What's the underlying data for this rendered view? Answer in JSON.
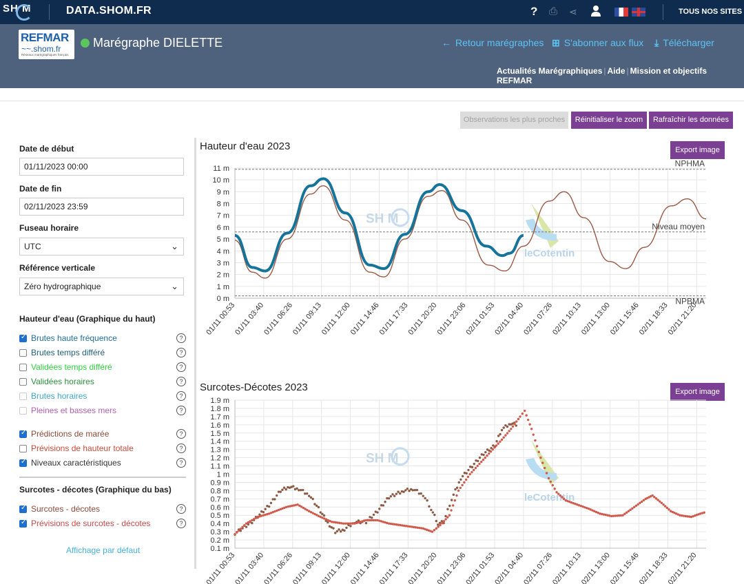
{
  "topbar": {
    "logo_text": "SH  M",
    "site_title": "DATA.SHOM.FR",
    "help_icon": "question-icon",
    "print_icon": "print-icon",
    "share_icon": "share-icon",
    "user_icon": "user-icon",
    "all_sites": "TOUS NOS SITES"
  },
  "header": {
    "logo_line1": "REFMAR",
    "logo_line2": "~~.shom.fr",
    "logo_line3": "Réseaux marégraphiques français",
    "station_title": "Marégraphe DIELETTE",
    "back_link": "Retour marégraphes",
    "subscribe_link": "S'abonner aux flux",
    "download_link": "Télécharger",
    "nav": [
      "Actualités Marégraphiques",
      "Aide",
      "Mission et objectifs REFMAR"
    ]
  },
  "toolbar": {
    "nearest": "Observations les plus proches",
    "reset_zoom": "Réinitialiser le zoom",
    "refresh": "Rafraîchir les données"
  },
  "sidebar": {
    "start_label": "Date de début",
    "start_value": "01/11/2023 00:00",
    "end_label": "Date de fin",
    "end_value": "02/11/2023 23:59",
    "tz_label": "Fuseau horaire",
    "tz_value": "UTC",
    "ref_label": "Référence verticale",
    "ref_value": "Zéro hydrographique",
    "top_section": "Hauteur d'eau (Graphique du haut)",
    "top_options": [
      {
        "label": "Brutes haute fréquence",
        "checked": true,
        "color": "#1f6f9a"
      },
      {
        "label": "Brutes temps différé",
        "checked": false,
        "color": "#1f5f7a"
      },
      {
        "label": "Validées temps différé",
        "checked": false,
        "color": "#2fcf3f"
      },
      {
        "label": "Validées horaires",
        "checked": false,
        "color": "#2f8f3f"
      },
      {
        "label": "Brutes horaires",
        "checked": false,
        "color": "#3fa8c8"
      },
      {
        "label": "Pleines et basses mers",
        "checked": false,
        "color": "#b060b0"
      },
      {
        "label": "Prédictions de marée",
        "checked": true,
        "color": "#8b4a3a"
      },
      {
        "label": "Prévisions de hauteur totale",
        "checked": false,
        "color": "#c84a3a"
      },
      {
        "label": "Niveaux caractéristiques",
        "checked": true,
        "color": "#333333"
      }
    ],
    "bottom_section": "Surcotes - décotes (Graphique du bas)",
    "bottom_options": [
      {
        "label": "Surcotes - décotes",
        "checked": true,
        "color": "#8b4a3a"
      },
      {
        "label": "Prévisions de surcotes - décotes",
        "checked": true,
        "color": "#c84a4a"
      }
    ],
    "default_link": "Affichage par défaut"
  },
  "chart_data": [
    {
      "type": "line",
      "title": "Hauteur d'eau 2023",
      "export_label": "Export image",
      "watermark_left": "SH  M",
      "watermark_right": "leCotentin",
      "y_ticks": [
        "0 m",
        "1 m",
        "2 m",
        "3 m",
        "4 m",
        "5 m",
        "6 m",
        "7 m",
        "8 m",
        "9 m",
        "10 m",
        "11 m"
      ],
      "ylim": [
        0,
        11
      ],
      "x_ticks": [
        "01/11 00:53",
        "01/11 03:40",
        "01/11 06:26",
        "01/11 09:13",
        "01/11 12:00",
        "01/11 14:46",
        "01/11 17:33",
        "01/11 20:20",
        "01/11 23:06",
        "02/11 01:53",
        "02/11 04:40",
        "02/11 07:26",
        "02/11 10:13",
        "02/11 13:00",
        "02/11 15:46",
        "02/11 18:33",
        "02/11 21:20"
      ],
      "levels": [
        {
          "name": "NPHMA",
          "value": 10.9
        },
        {
          "name": "Niveau moyen",
          "value": 5.6
        },
        {
          "name": "NPBMA",
          "value": 0.2
        }
      ],
      "series": [
        {
          "name": "Prédictions de marée",
          "color": "#9a5a46",
          "points": [
            [
              0,
              4.9
            ],
            [
              1.5,
              2.2
            ],
            [
              2.6,
              1.7
            ],
            [
              4.5,
              5.0
            ],
            [
              6.5,
              8.8
            ],
            [
              7.6,
              9.5
            ],
            [
              9.5,
              6.6
            ],
            [
              11.6,
              2.2
            ],
            [
              12.8,
              1.8
            ],
            [
              14.6,
              5.0
            ],
            [
              16.6,
              8.6
            ],
            [
              17.8,
              9.1
            ],
            [
              19.5,
              6.6
            ],
            [
              21.8,
              2.8
            ],
            [
              23.2,
              2.3
            ],
            [
              24.8,
              4.4
            ],
            [
              27.0,
              8.2
            ],
            [
              28.3,
              9.0
            ],
            [
              30.0,
              6.8
            ],
            [
              32.2,
              3.1
            ],
            [
              33.6,
              2.5
            ],
            [
              35.2,
              4.3
            ],
            [
              37.5,
              7.8
            ],
            [
              38.9,
              8.4
            ],
            [
              40.5,
              6.7
            ]
          ]
        },
        {
          "name": "Brutes haute fréquence",
          "color": "#16739a",
          "points": [
            [
              0,
              5.3
            ],
            [
              1.5,
              2.6
            ],
            [
              2.6,
              2.3
            ],
            [
              4.5,
              5.5
            ],
            [
              6.5,
              9.5
            ],
            [
              7.6,
              10.1
            ],
            [
              9.5,
              7.2
            ],
            [
              11.6,
              2.8
            ],
            [
              12.8,
              2.5
            ],
            [
              14.6,
              5.4
            ],
            [
              16.6,
              9.0
            ],
            [
              17.6,
              9.6
            ],
            [
              19.5,
              7.4
            ],
            [
              21.6,
              4.4
            ],
            [
              23.0,
              3.6
            ],
            [
              23.6,
              3.8
            ],
            [
              24.8,
              5.3
            ]
          ]
        }
      ]
    },
    {
      "type": "scatter",
      "title": "Surcotes-Décotes 2023",
      "export_label": "Export image",
      "watermark_left": "SH  M",
      "watermark_right": "leCotentin",
      "y_ticks": [
        "0.1 m",
        "0.2 m",
        "0.3 m",
        "0.4 m",
        "0.5 m",
        "0.6 m",
        "0.7 m",
        "0.8 m",
        "0.9 m",
        "1 m",
        "1.1 m",
        "1.2 m",
        "1.3 m",
        "1.4 m",
        "1.5 m",
        "1.6 m",
        "1.7 m",
        "1.8 m",
        "1.9 m"
      ],
      "ylim": [
        0.1,
        1.9
      ],
      "x_ticks": [
        "01/11 00:53",
        "01/11 03:40",
        "01/11 06:26",
        "01/11 09:13",
        "01/11 12:00",
        "01/11 14:46",
        "01/11 17:33",
        "01/11 20:20",
        "01/11 23:06",
        "02/11 01:53",
        "02/11 04:40",
        "02/11 07:26",
        "02/11 10:13",
        "02/11 13:00",
        "02/11 15:46",
        "02/11 18:33",
        "02/11 21:20"
      ],
      "series": [
        {
          "name": "Surcotes - décotes",
          "color": "#8b5a44",
          "points": [
            [
              0,
              0.28
            ],
            [
              1.5,
              0.42
            ],
            [
              3.0,
              0.62
            ],
            [
              4.0,
              0.8
            ],
            [
              4.8,
              0.85
            ],
            [
              5.6,
              0.82
            ],
            [
              6.5,
              0.75
            ],
            [
              7.5,
              0.55
            ],
            [
              8.3,
              0.38
            ],
            [
              8.8,
              0.3
            ],
            [
              9.6,
              0.33
            ],
            [
              10.5,
              0.42
            ],
            [
              11.5,
              0.42
            ],
            [
              12.5,
              0.55
            ],
            [
              13.5,
              0.72
            ],
            [
              14.8,
              0.8
            ],
            [
              15.6,
              0.82
            ],
            [
              16.5,
              0.75
            ],
            [
              17.2,
              0.58
            ],
            [
              17.8,
              0.4
            ],
            [
              18.3,
              0.42
            ],
            [
              19.0,
              0.7
            ],
            [
              19.8,
              0.95
            ],
            [
              20.8,
              1.1
            ],
            [
              21.8,
              1.25
            ],
            [
              22.8,
              1.35
            ],
            [
              23.4,
              1.55
            ],
            [
              24.2,
              1.62
            ],
            [
              24.8,
              1.6
            ]
          ]
        },
        {
          "name": "Prévisions de surcotes - décotes",
          "color": "#d05a4c",
          "points": [
            [
              0,
              0.27
            ],
            [
              1.0,
              0.4
            ],
            [
              2.0,
              0.48
            ],
            [
              3.0,
              0.52
            ],
            [
              4.5,
              0.6
            ],
            [
              5.5,
              0.63
            ],
            [
              6.5,
              0.55
            ],
            [
              7.5,
              0.48
            ],
            [
              8.5,
              0.42
            ],
            [
              9.5,
              0.4
            ],
            [
              10.5,
              0.4
            ],
            [
              11.5,
              0.44
            ],
            [
              12.5,
              0.44
            ],
            [
              13.5,
              0.4
            ],
            [
              14.5,
              0.38
            ],
            [
              15.5,
              0.36
            ],
            [
              16.5,
              0.34
            ],
            [
              17.3,
              0.3
            ],
            [
              18.0,
              0.38
            ],
            [
              18.8,
              0.5
            ],
            [
              19.6,
              0.8
            ],
            [
              20.6,
              1.0
            ],
            [
              21.6,
              1.15
            ],
            [
              22.6,
              1.3
            ],
            [
              23.4,
              1.42
            ],
            [
              24.2,
              1.55
            ],
            [
              25.0,
              1.7
            ],
            [
              25.4,
              1.77
            ],
            [
              26.0,
              1.55
            ],
            [
              26.8,
              1.2
            ],
            [
              27.5,
              0.95
            ],
            [
              28.2,
              0.78
            ],
            [
              29.0,
              0.68
            ],
            [
              30.0,
              0.63
            ],
            [
              31.0,
              0.58
            ],
            [
              32.0,
              0.52
            ],
            [
              33.0,
              0.49
            ],
            [
              34.0,
              0.5
            ],
            [
              35.0,
              0.6
            ],
            [
              36.0,
              0.7
            ],
            [
              36.6,
              0.74
            ],
            [
              37.4,
              0.65
            ],
            [
              38.2,
              0.55
            ],
            [
              39.0,
              0.5
            ],
            [
              40.0,
              0.48
            ],
            [
              40.8,
              0.52
            ],
            [
              41.3,
              0.54
            ]
          ]
        }
      ]
    }
  ]
}
